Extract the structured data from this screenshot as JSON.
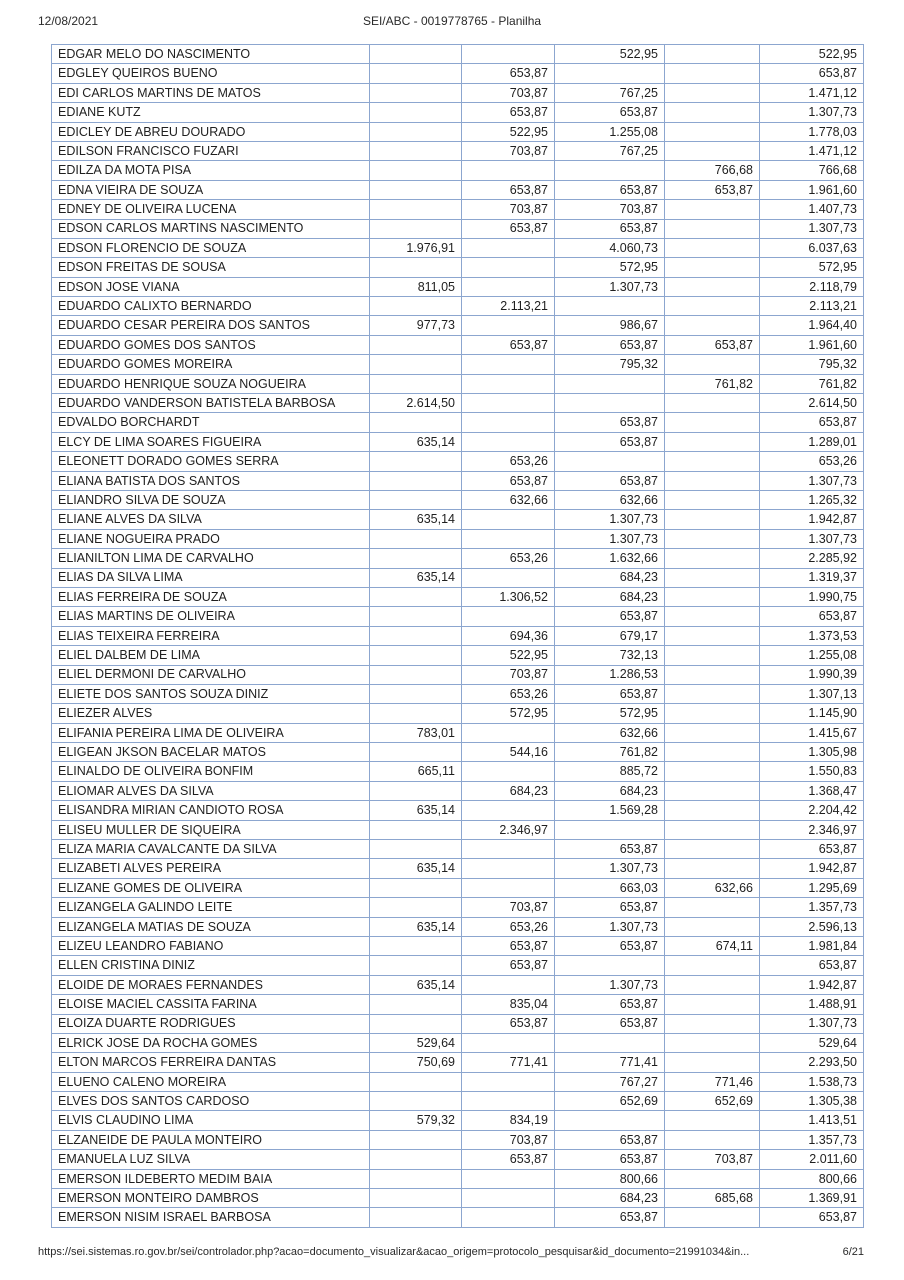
{
  "header": {
    "date": "12/08/2021",
    "title": "SEI/ABC - 0019778765 - Planilha"
  },
  "footer": {
    "url": "https://sei.sistemas.ro.gov.br/sei/controlador.php?acao=documento_visualizar&acao_origem=protocolo_pesquisar&id_documento=21991034&in...",
    "page": "6/21"
  },
  "table": {
    "columns": [
      "name",
      "v1",
      "v2",
      "v3",
      "v4",
      "total"
    ],
    "border_color": "#8ca6cf",
    "rows": [
      [
        "EDGAR MELO DO NASCIMENTO",
        "",
        "",
        "522,95",
        "",
        "522,95"
      ],
      [
        "EDGLEY QUEIROS BUENO",
        "",
        "653,87",
        "",
        "",
        "653,87"
      ],
      [
        "EDI CARLOS MARTINS DE MATOS",
        "",
        "703,87",
        "767,25",
        "",
        "1.471,12"
      ],
      [
        "EDIANE KUTZ",
        "",
        "653,87",
        "653,87",
        "",
        "1.307,73"
      ],
      [
        "EDICLEY DE ABREU DOURADO",
        "",
        "522,95",
        "1.255,08",
        "",
        "1.778,03"
      ],
      [
        "EDILSON FRANCISCO FUZARI",
        "",
        "703,87",
        "767,25",
        "",
        "1.471,12"
      ],
      [
        "EDILZA DA MOTA PISA",
        "",
        "",
        "",
        "766,68",
        "766,68"
      ],
      [
        "EDNA VIEIRA DE SOUZA",
        "",
        "653,87",
        "653,87",
        "653,87",
        "1.961,60"
      ],
      [
        "EDNEY DE OLIVEIRA LUCENA",
        "",
        "703,87",
        "703,87",
        "",
        "1.407,73"
      ],
      [
        "EDSON CARLOS MARTINS NASCIMENTO",
        "",
        "653,87",
        "653,87",
        "",
        "1.307,73"
      ],
      [
        "EDSON FLORENCIO DE SOUZA",
        "1.976,91",
        "",
        "4.060,73",
        "",
        "6.037,63"
      ],
      [
        "EDSON FREITAS DE SOUSA",
        "",
        "",
        "572,95",
        "",
        "572,95"
      ],
      [
        "EDSON JOSE VIANA",
        "811,05",
        "",
        "1.307,73",
        "",
        "2.118,79"
      ],
      [
        "EDUARDO CALIXTO BERNARDO",
        "",
        "2.113,21",
        "",
        "",
        "2.113,21"
      ],
      [
        "EDUARDO CESAR PEREIRA DOS SANTOS",
        "977,73",
        "",
        "986,67",
        "",
        "1.964,40"
      ],
      [
        "EDUARDO GOMES DOS SANTOS",
        "",
        "653,87",
        "653,87",
        "653,87",
        "1.961,60"
      ],
      [
        "EDUARDO GOMES MOREIRA",
        "",
        "",
        "795,32",
        "",
        "795,32"
      ],
      [
        "EDUARDO HENRIQUE SOUZA NOGUEIRA",
        "",
        "",
        "",
        "761,82",
        "761,82"
      ],
      [
        "EDUARDO VANDERSON BATISTELA BARBOSA",
        "2.614,50",
        "",
        "",
        "",
        "2.614,50"
      ],
      [
        "EDVALDO BORCHARDT",
        "",
        "",
        "653,87",
        "",
        "653,87"
      ],
      [
        "ELCY DE LIMA SOARES FIGUEIRA",
        "635,14",
        "",
        "653,87",
        "",
        "1.289,01"
      ],
      [
        "ELEONETT DORADO GOMES SERRA",
        "",
        "653,26",
        "",
        "",
        "653,26"
      ],
      [
        "ELIANA BATISTA DOS SANTOS",
        "",
        "653,87",
        "653,87",
        "",
        "1.307,73"
      ],
      [
        "ELIANDRO SILVA DE SOUZA",
        "",
        "632,66",
        "632,66",
        "",
        "1.265,32"
      ],
      [
        "ELIANE ALVES DA SILVA",
        "635,14",
        "",
        "1.307,73",
        "",
        "1.942,87"
      ],
      [
        "ELIANE NOGUEIRA PRADO",
        "",
        "",
        "1.307,73",
        "",
        "1.307,73"
      ],
      [
        "ELIANILTON LIMA DE CARVALHO",
        "",
        "653,26",
        "1.632,66",
        "",
        "2.285,92"
      ],
      [
        "ELIAS DA SILVA LIMA",
        "635,14",
        "",
        "684,23",
        "",
        "1.319,37"
      ],
      [
        "ELIAS FERREIRA DE SOUZA",
        "",
        "1.306,52",
        "684,23",
        "",
        "1.990,75"
      ],
      [
        "ELIAS MARTINS DE OLIVEIRA",
        "",
        "",
        "653,87",
        "",
        "653,87"
      ],
      [
        "ELIAS TEIXEIRA FERREIRA",
        "",
        "694,36",
        "679,17",
        "",
        "1.373,53"
      ],
      [
        "ELIEL DALBEM DE LIMA",
        "",
        "522,95",
        "732,13",
        "",
        "1.255,08"
      ],
      [
        "ELIEL DERMONI DE CARVALHO",
        "",
        "703,87",
        "1.286,53",
        "",
        "1.990,39"
      ],
      [
        "ELIETE DOS SANTOS SOUZA DINIZ",
        "",
        "653,26",
        "653,87",
        "",
        "1.307,13"
      ],
      [
        "ELIEZER ALVES",
        "",
        "572,95",
        "572,95",
        "",
        "1.145,90"
      ],
      [
        "ELIFANIA PEREIRA LIMA DE OLIVEIRA",
        "783,01",
        "",
        "632,66",
        "",
        "1.415,67"
      ],
      [
        "ELIGEAN JKSON BACELAR MATOS",
        "",
        "544,16",
        "761,82",
        "",
        "1.305,98"
      ],
      [
        "ELINALDO DE OLIVEIRA BONFIM",
        "665,11",
        "",
        "885,72",
        "",
        "1.550,83"
      ],
      [
        "ELIOMAR ALVES DA SILVA",
        "",
        "684,23",
        "684,23",
        "",
        "1.368,47"
      ],
      [
        "ELISANDRA MIRIAN CANDIOTO ROSA",
        "635,14",
        "",
        "1.569,28",
        "",
        "2.204,42"
      ],
      [
        "ELISEU MULLER DE SIQUEIRA",
        "",
        "2.346,97",
        "",
        "",
        "2.346,97"
      ],
      [
        "ELIZA MARIA CAVALCANTE DA SILVA",
        "",
        "",
        "653,87",
        "",
        "653,87"
      ],
      [
        "ELIZABETI ALVES PEREIRA",
        "635,14",
        "",
        "1.307,73",
        "",
        "1.942,87"
      ],
      [
        "ELIZANE GOMES DE OLIVEIRA",
        "",
        "",
        "663,03",
        "632,66",
        "1.295,69"
      ],
      [
        "ELIZANGELA GALINDO LEITE",
        "",
        "703,87",
        "653,87",
        "",
        "1.357,73"
      ],
      [
        "ELIZANGELA MATIAS DE SOUZA",
        "635,14",
        "653,26",
        "1.307,73",
        "",
        "2.596,13"
      ],
      [
        "ELIZEU LEANDRO FABIANO",
        "",
        "653,87",
        "653,87",
        "674,11",
        "1.981,84"
      ],
      [
        "ELLEN CRISTINA DINIZ",
        "",
        "653,87",
        "",
        "",
        "653,87"
      ],
      [
        "ELOIDE DE MORAES FERNANDES",
        "635,14",
        "",
        "1.307,73",
        "",
        "1.942,87"
      ],
      [
        "ELOISE MACIEL CASSITA FARINA",
        "",
        "835,04",
        "653,87",
        "",
        "1.488,91"
      ],
      [
        "ELOIZA DUARTE RODRIGUES",
        "",
        "653,87",
        "653,87",
        "",
        "1.307,73"
      ],
      [
        "ELRICK JOSE DA ROCHA GOMES",
        "529,64",
        "",
        "",
        "",
        "529,64"
      ],
      [
        "ELTON MARCOS FERREIRA DANTAS",
        "750,69",
        "771,41",
        "771,41",
        "",
        "2.293,50"
      ],
      [
        "ELUENO CALENO MOREIRA",
        "",
        "",
        "767,27",
        "771,46",
        "1.538,73"
      ],
      [
        "ELVES DOS SANTOS CARDOSO",
        "",
        "",
        "652,69",
        "652,69",
        "1.305,38"
      ],
      [
        "ELVIS CLAUDINO LIMA",
        "579,32",
        "834,19",
        "",
        "",
        "1.413,51"
      ],
      [
        "ELZANEIDE DE PAULA MONTEIRO",
        "",
        "703,87",
        "653,87",
        "",
        "1.357,73"
      ],
      [
        "EMANUELA LUZ SILVA",
        "",
        "653,87",
        "653,87",
        "703,87",
        "2.011,60"
      ],
      [
        "EMERSON ILDEBERTO MEDIM BAIA",
        "",
        "",
        "800,66",
        "",
        "800,66"
      ],
      [
        "EMERSON MONTEIRO DAMBROS",
        "",
        "",
        "684,23",
        "685,68",
        "1.369,91"
      ],
      [
        "EMERSON NISIM ISRAEL BARBOSA",
        "",
        "",
        "653,87",
        "",
        "653,87"
      ]
    ]
  }
}
